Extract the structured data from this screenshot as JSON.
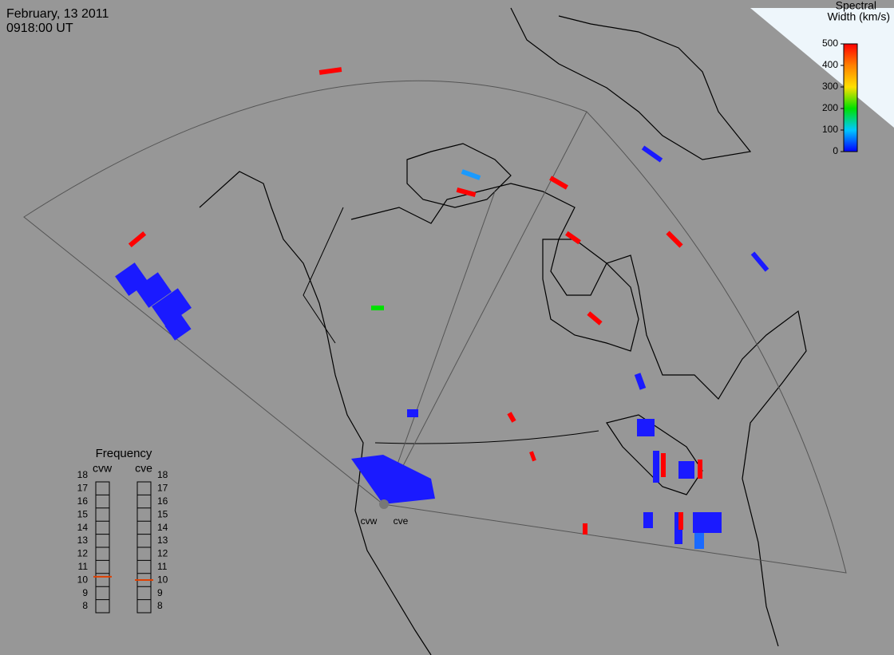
{
  "header": {
    "date": "February, 13 2011",
    "time": "0918:00 UT"
  },
  "colorbar": {
    "title": [
      "Spectral",
      "Width (km/s)"
    ],
    "lim": [
      0,
      500
    ],
    "ticks": [
      0,
      100,
      200,
      300,
      400,
      500
    ],
    "colors": [
      "#0000ff",
      "#00c8ff",
      "#00e000",
      "#ffe000",
      "#ff8000",
      "#ff0000"
    ]
  },
  "frequency": {
    "title": "Frequency",
    "lim": [
      8,
      18
    ],
    "ticks": [
      8,
      9,
      10,
      11,
      12,
      13,
      14,
      15,
      16,
      17,
      18
    ],
    "marker_color": "#e04000",
    "radars": [
      {
        "name": "cvw",
        "value": 10.75
      },
      {
        "name": "cve",
        "value": 10.5
      }
    ]
  }
}
